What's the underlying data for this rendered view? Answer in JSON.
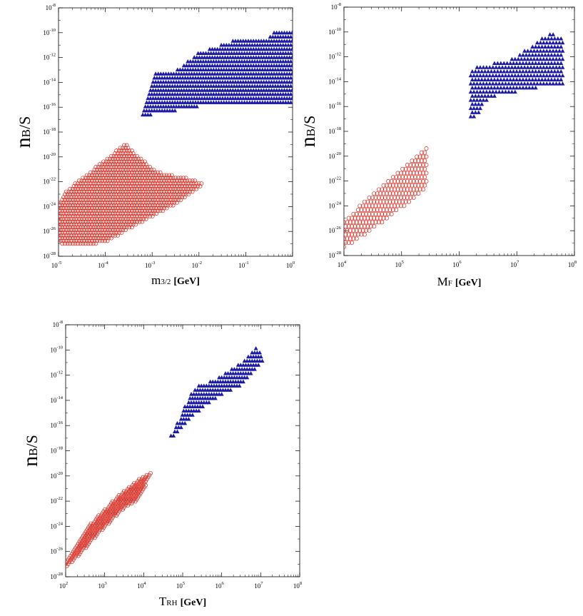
{
  "chart_data": [
    {
      "type": "scatter",
      "xlabel": "m3/2 [GeV]",
      "xlabel_main": "m",
      "xlabel_sub": "3/2",
      "xlabel_unit": "[GeV]",
      "ylabel": "nB/S",
      "ylabel_main": "n",
      "ylabel_sub": "B",
      "ylabel_tail": "/S",
      "xscale": "log",
      "yscale": "log",
      "xlim_exp": [
        -5,
        0
      ],
      "ylim_exp": [
        -28,
        -8
      ],
      "x_ticks": [
        {
          "base": "10",
          "exp": "-5"
        },
        {
          "base": "10",
          "exp": "-4"
        },
        {
          "base": "10",
          "exp": "-3"
        },
        {
          "base": "10",
          "exp": "-2"
        },
        {
          "base": "10",
          "exp": "-1"
        },
        {
          "base": "10",
          "exp": "0"
        }
      ],
      "y_ticks": [
        {
          "base": "10",
          "exp": "-8"
        },
        {
          "base": "10",
          "exp": "-10"
        },
        {
          "base": "10",
          "exp": "-12"
        },
        {
          "base": "10",
          "exp": "-14"
        },
        {
          "base": "10",
          "exp": "-16"
        },
        {
          "base": "10",
          "exp": "-18"
        },
        {
          "base": "10",
          "exp": "-20"
        },
        {
          "base": "10",
          "exp": "-22"
        },
        {
          "base": "10",
          "exp": "-24"
        },
        {
          "base": "10",
          "exp": "-26"
        },
        {
          "base": "10",
          "exp": "-28"
        }
      ],
      "series": [
        {
          "name": "blue triangles",
          "marker": "triangle",
          "color": "#1a1aa6",
          "region_log10": [
            [
              -3.2,
              -16.6
            ],
            [
              -2.95,
              -13.1
            ],
            [
              -2.5,
              -13.0
            ],
            [
              -2.0,
              -11.6
            ],
            [
              -1.2,
              -10.5
            ],
            [
              -0.55,
              -10.6
            ],
            [
              -0.35,
              -9.7
            ],
            [
              -0.25,
              -9.8
            ],
            [
              0.0,
              -10.0
            ],
            [
              0.0,
              -15.8
            ],
            [
              -1.8,
              -15.8
            ],
            [
              -3.0,
              -16.6
            ]
          ],
          "x_step": 0.055,
          "y_step": 0.33
        },
        {
          "name": "red circles",
          "marker": "circle",
          "color": "#d9261c",
          "region_log10": [
            [
              -5.0,
              -26.9
            ],
            [
              -4.7,
              -27.2
            ],
            [
              -4.0,
              -26.9
            ],
            [
              -3.3,
              -25.4
            ],
            [
              -2.9,
              -24.6
            ],
            [
              -2.4,
              -23.6
            ],
            [
              -1.9,
              -22.2
            ],
            [
              -2.1,
              -21.8
            ],
            [
              -2.9,
              -21.2
            ],
            [
              -3.4,
              -19.6
            ],
            [
              -3.55,
              -18.9
            ],
            [
              -3.8,
              -19.6
            ],
            [
              -4.2,
              -20.8
            ],
            [
              -4.8,
              -22.6
            ],
            [
              -5.0,
              -23.6
            ]
          ],
          "x_step": 0.055,
          "y_step": 0.22
        }
      ]
    },
    {
      "type": "scatter",
      "xlabel": "MF [GeV]",
      "xlabel_main": "M",
      "xlabel_sub": "F",
      "xlabel_unit": "[GeV]",
      "ylabel": "nB/S",
      "ylabel_main": "n",
      "ylabel_sub": "B",
      "ylabel_tail": "/S",
      "xscale": "log",
      "yscale": "log",
      "xlim_exp": [
        4,
        8
      ],
      "ylim_exp": [
        -28,
        -8
      ],
      "x_ticks": [
        {
          "base": "10",
          "exp": "4"
        },
        {
          "base": "10",
          "exp": "5"
        },
        {
          "base": "10",
          "exp": "6"
        },
        {
          "base": "10",
          "exp": "7"
        },
        {
          "base": "10",
          "exp": "8"
        }
      ],
      "y_ticks": [
        {
          "base": "10",
          "exp": "-8"
        },
        {
          "base": "10",
          "exp": "-10"
        },
        {
          "base": "10",
          "exp": "-12"
        },
        {
          "base": "10",
          "exp": "-14"
        },
        {
          "base": "10",
          "exp": "-16"
        },
        {
          "base": "10",
          "exp": "-18"
        },
        {
          "base": "10",
          "exp": "-20"
        },
        {
          "base": "10",
          "exp": "-22"
        },
        {
          "base": "10",
          "exp": "-24"
        },
        {
          "base": "10",
          "exp": "-26"
        },
        {
          "base": "10",
          "exp": "-28"
        }
      ],
      "series": [
        {
          "name": "blue triangles",
          "marker": "triangle",
          "color": "#1a1aa6",
          "region_log10": [
            [
              6.2,
              -16.8
            ],
            [
              6.2,
              -12.9
            ],
            [
              6.9,
              -12.2
            ],
            [
              7.2,
              -11.3
            ],
            [
              7.6,
              -10.0
            ],
            [
              7.75,
              -10.4
            ],
            [
              7.8,
              -10.5
            ],
            [
              7.8,
              -14.2
            ],
            [
              7.2,
              -14.6
            ],
            [
              6.5,
              -15.3
            ],
            [
              6.3,
              -16.8
            ]
          ],
          "x_step": 0.055,
          "y_step": 0.33
        },
        {
          "name": "red circles",
          "marker": "circle",
          "color": "#d9261c",
          "region_log10": [
            [
              4.0,
              -27.3
            ],
            [
              4.0,
              -25.2
            ],
            [
              4.6,
              -22.5
            ],
            [
              5.2,
              -20.3
            ],
            [
              5.45,
              -19.2
            ],
            [
              5.45,
              -22.5
            ],
            [
              5.0,
              -24.2
            ],
            [
              4.4,
              -26.2
            ],
            [
              4.05,
              -27.3
            ]
          ],
          "x_step": 0.055,
          "y_step": 0.33
        }
      ]
    },
    {
      "type": "scatter",
      "xlabel": "TRH [GeV]",
      "xlabel_main": "T",
      "xlabel_sub": "RH",
      "xlabel_unit": "[GeV]",
      "ylabel": "nB/S",
      "ylabel_main": "n",
      "ylabel_sub": "B",
      "ylabel_tail": "/S",
      "xscale": "log",
      "yscale": "log",
      "xlim_exp": [
        2,
        8
      ],
      "ylim_exp": [
        -28,
        -8
      ],
      "x_ticks": [
        {
          "base": "10",
          "exp": "2"
        },
        {
          "base": "10",
          "exp": "3"
        },
        {
          "base": "10",
          "exp": "4"
        },
        {
          "base": "10",
          "exp": "5"
        },
        {
          "base": "10",
          "exp": "6"
        },
        {
          "base": "10",
          "exp": "7"
        },
        {
          "base": "10",
          "exp": "8"
        }
      ],
      "y_ticks": [
        {
          "base": "10",
          "exp": "-8"
        },
        {
          "base": "10",
          "exp": "-10"
        },
        {
          "base": "10",
          "exp": "-12"
        },
        {
          "base": "10",
          "exp": "-14"
        },
        {
          "base": "10",
          "exp": "-16"
        },
        {
          "base": "10",
          "exp": "-18"
        },
        {
          "base": "10",
          "exp": "-20"
        },
        {
          "base": "10",
          "exp": "-22"
        },
        {
          "base": "10",
          "exp": "-24"
        },
        {
          "base": "10",
          "exp": "-26"
        },
        {
          "base": "10",
          "exp": "-28"
        }
      ],
      "series": [
        {
          "name": "blue triangles",
          "marker": "triangle",
          "color": "#1a1aa6",
          "region_log10": [
            [
              4.7,
              -16.8
            ],
            [
              5.0,
              -14.8
            ],
            [
              5.3,
              -13.0
            ],
            [
              6.0,
              -12.0
            ],
            [
              6.5,
              -11.0
            ],
            [
              6.9,
              -9.8
            ],
            [
              7.1,
              -10.7
            ],
            [
              6.5,
              -12.8
            ],
            [
              5.8,
              -13.9
            ],
            [
              5.3,
              -15.1
            ],
            [
              5.0,
              -16.0
            ],
            [
              4.8,
              -16.8
            ]
          ],
          "x_step": 0.065,
          "y_step": 0.33
        },
        {
          "name": "red circles",
          "marker": "circle",
          "color": "#d9261c",
          "region_log10": [
            [
              2.0,
              -27.3
            ],
            [
              2.2,
              -26.8
            ],
            [
              2.9,
              -24.4
            ],
            [
              3.5,
              -22.6
            ],
            [
              3.9,
              -21.8
            ],
            [
              4.1,
              -20.4
            ],
            [
              4.2,
              -19.7
            ],
            [
              3.9,
              -20.2
            ],
            [
              3.3,
              -21.7
            ],
            [
              2.6,
              -23.9
            ],
            [
              2.0,
              -26.7
            ]
          ],
          "x_step": 0.065,
          "y_step": 0.16
        }
      ]
    }
  ]
}
